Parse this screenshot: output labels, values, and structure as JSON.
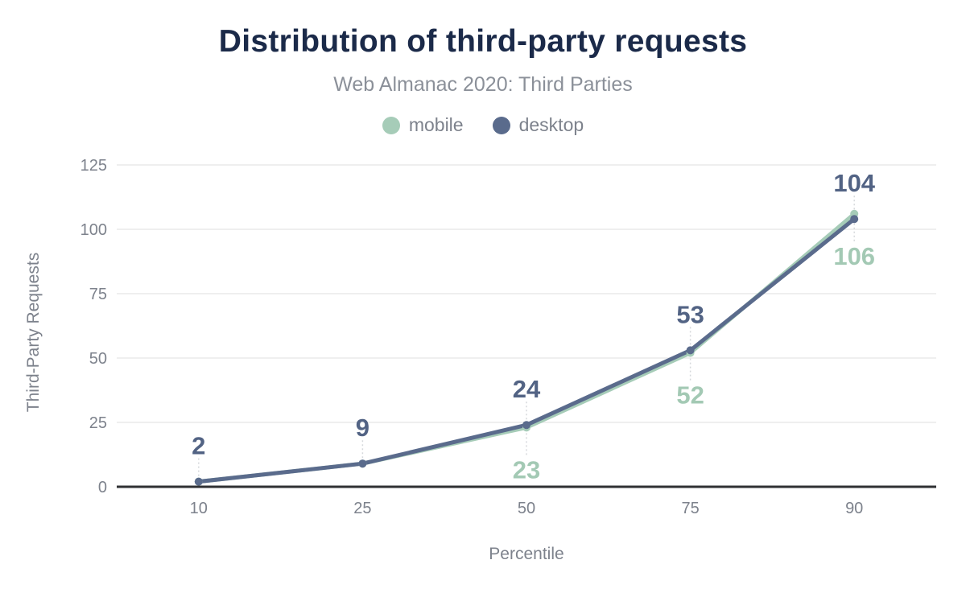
{
  "chart_data": {
    "type": "line",
    "title": "Distribution of third-party requests",
    "subtitle": "Web Almanac 2020: Third Parties",
    "xlabel": "Percentile",
    "ylabel": "Third-Party Requests",
    "categories": [
      "10",
      "25",
      "50",
      "75",
      "90"
    ],
    "series": [
      {
        "name": "mobile",
        "color": "#a6ccb8",
        "label_color": "#a3c9b4",
        "values": [
          2,
          9,
          23,
          52,
          106
        ],
        "data_labels": {
          "indices": [
            2,
            3,
            4
          ],
          "position": "below"
        }
      },
      {
        "name": "desktop",
        "color": "#5a6b8c",
        "label_color": "#526384",
        "values": [
          2,
          9,
          24,
          53,
          104
        ],
        "data_labels": {
          "indices": [
            0,
            1,
            2,
            3,
            4
          ],
          "position": "above"
        }
      }
    ],
    "yticks": [
      0,
      25,
      50,
      75,
      100,
      125
    ],
    "ylim": [
      0,
      125
    ],
    "grid": true,
    "legend_position": "top",
    "colors": {
      "title": "#1b2a49",
      "subtitle": "#8b9099",
      "axis_text": "#7d828c",
      "grid": "#efefef",
      "baseline": "#2f3033",
      "leader": "#d5d8db",
      "background": "#ffffff"
    }
  }
}
